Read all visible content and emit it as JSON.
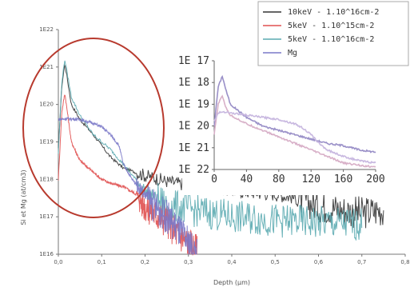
{
  "chart_data": [
    {
      "type": "line",
      "xlabel": "Depth (µm)",
      "ylabel": "Si et Mg (at/cm3)",
      "xlim": [
        0,
        0.8
      ],
      "ylim_log10": [
        16,
        22
      ],
      "y_scale": "log",
      "grid": false,
      "legend_position": "top-right",
      "x_ticks": [
        "0,0",
        "0,1",
        "0,2",
        "0,3",
        "0,4",
        "0,5",
        "0,6",
        "0,7",
        "0,8"
      ],
      "y_ticks": [
        "1E16",
        "1E17",
        "1E18",
        "1E19",
        "1E20",
        "1E21",
        "1E22"
      ],
      "series": [
        {
          "name": "10keV - 1.10^16cm-2",
          "color": "#333333",
          "x": [
            0.0,
            0.008,
            0.015,
            0.03,
            0.05,
            0.08,
            0.1,
            0.12,
            0.15,
            0.2,
            0.25,
            0.3,
            0.35,
            0.4,
            0.45,
            0.5,
            0.55,
            0.6,
            0.65,
            0.7,
            0.75
          ],
          "log10_y": [
            18.8,
            20.5,
            21.1,
            20.0,
            19.6,
            19.2,
            18.9,
            18.6,
            18.3,
            18.1,
            17.95,
            17.85,
            17.8,
            17.7,
            17.65,
            17.6,
            17.5,
            17.3,
            17.2,
            17.1,
            17.2
          ]
        },
        {
          "name": "5keV - 1.10^15cm-2",
          "color": "#e05050",
          "x": [
            0.0,
            0.008,
            0.015,
            0.03,
            0.05,
            0.08,
            0.1,
            0.12,
            0.15,
            0.18,
            0.2,
            0.22,
            0.25,
            0.27,
            0.3,
            0.32
          ],
          "log10_y": [
            18.0,
            19.8,
            20.3,
            19.0,
            18.5,
            18.2,
            18.0,
            17.9,
            17.8,
            17.6,
            17.3,
            17.1,
            16.9,
            16.6,
            16.3,
            16.1
          ]
        },
        {
          "name": "5keV - 1.10^16cm-2",
          "color": "#5aaab0",
          "x": [
            0.0,
            0.008,
            0.015,
            0.03,
            0.05,
            0.08,
            0.1,
            0.12,
            0.15,
            0.2,
            0.25,
            0.3,
            0.4,
            0.5,
            0.6,
            0.7
          ],
          "log10_y": [
            18.7,
            20.6,
            21.2,
            20.2,
            19.7,
            19.2,
            19.0,
            18.8,
            18.4,
            17.7,
            17.3,
            17.2,
            17.0,
            16.9,
            16.85,
            16.8
          ]
        },
        {
          "name": "Mg",
          "color": "#7a78c8",
          "x": [
            0.0,
            0.02,
            0.05,
            0.08,
            0.1,
            0.12,
            0.14,
            0.15,
            0.17,
            0.2,
            0.22,
            0.25,
            0.28,
            0.3,
            0.32
          ],
          "log10_y": [
            19.6,
            19.62,
            19.6,
            19.5,
            19.4,
            19.2,
            18.9,
            18.4,
            18.0,
            17.6,
            17.3,
            17.0,
            16.6,
            16.3,
            16.0
          ]
        }
      ]
    },
    {
      "type": "line",
      "xlim": [
        0,
        200
      ],
      "ylim_log10": [
        17,
        22
      ],
      "y_scale": "log",
      "x_ticks": [
        "0",
        "40",
        "80",
        "120",
        "160",
        "200"
      ],
      "y_ticks": [
        "1E 17",
        "1E 18",
        "1E 19",
        "1E 20",
        "1E 21",
        "1E 22"
      ],
      "series": [
        {
          "color": "#9a90c8",
          "x": [
            0,
            5,
            10,
            15,
            20,
            30,
            40,
            60,
            80,
            100,
            120,
            140,
            160,
            180,
            200
          ],
          "log10_y": [
            19.0,
            20.8,
            21.3,
            20.6,
            20.0,
            19.7,
            19.4,
            19.0,
            18.8,
            18.6,
            18.4,
            18.2,
            18.1,
            17.9,
            17.8
          ]
        },
        {
          "color": "#d8b0c8",
          "x": [
            0,
            5,
            10,
            15,
            20,
            30,
            40,
            60,
            80,
            100,
            120,
            140,
            160,
            180,
            200
          ],
          "log10_y": [
            18.6,
            20.0,
            20.4,
            19.8,
            19.5,
            19.3,
            19.1,
            18.8,
            18.5,
            18.2,
            17.9,
            17.6,
            17.3,
            17.2,
            17.1
          ]
        },
        {
          "color": "#c8b8e0",
          "x": [
            0,
            5,
            10,
            15,
            20,
            40,
            60,
            80,
            100,
            110,
            120,
            130,
            140,
            160,
            180,
            200
          ],
          "log10_y": [
            19.2,
            19.6,
            19.65,
            19.65,
            19.6,
            19.5,
            19.4,
            19.3,
            19.1,
            18.9,
            18.6,
            18.2,
            17.9,
            17.6,
            17.4,
            17.3
          ]
        }
      ]
    }
  ],
  "legend": {
    "items": [
      {
        "label": "10keV - 1.10^16cm-2",
        "color": "#333333"
      },
      {
        "label": "5keV - 1.10^15cm-2",
        "color": "#e05050"
      },
      {
        "label": "5keV - 1.10^16cm-2",
        "color": "#5aaab0"
      },
      {
        "label": "Mg",
        "color": "#7a78c8"
      }
    ]
  },
  "annotation": {
    "shape": "ellipse",
    "color": "#b83a2e"
  }
}
